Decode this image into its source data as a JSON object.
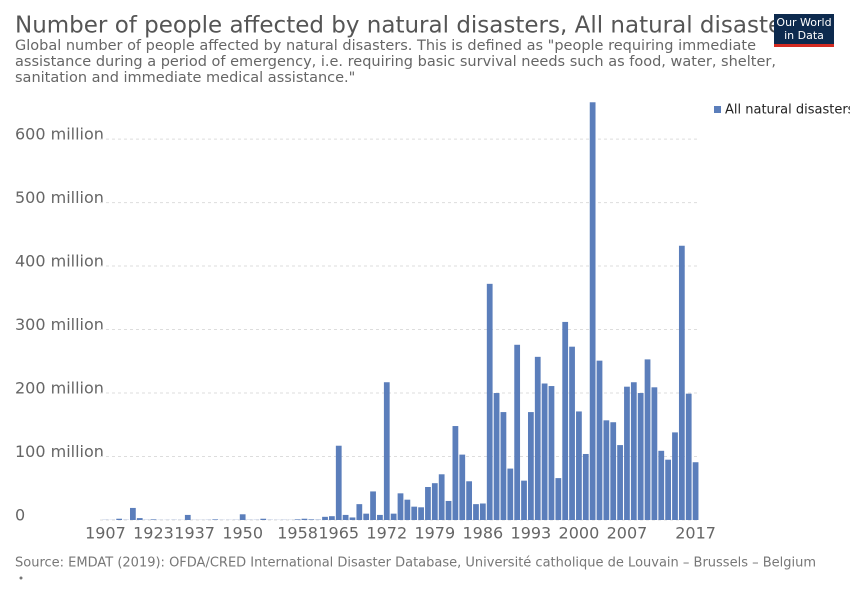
{
  "chart_data": {
    "type": "bar",
    "title": "Number of people affected by natural disasters, All natural disasters",
    "subtitle": "Global number of people affected by natural disasters. This is defined as \"people requiring immediate assistance during a period of emergency, i.e. requiring basic survival needs such as food, water, shelter, sanitation and immediate medical assistance.\"",
    "logo": "Our World in Data",
    "source": "Source: EMDAT (2019): OFDA/CRED International Disaster Database, Université catholique de Louvain – Brussels – Belgium",
    "categories": [
      "1907",
      null,
      null,
      null,
      null,
      null,
      null,
      "1923",
      null,
      null,
      null,
      null,
      null,
      "1937",
      null,
      null,
      null,
      null,
      null,
      null,
      "1950",
      null,
      null,
      null,
      null,
      null,
      null,
      null,
      "1958",
      null,
      null,
      null,
      null,
      null,
      "1965",
      null,
      null,
      null,
      null,
      null,
      null,
      "1972",
      null,
      null,
      null,
      null,
      null,
      null,
      "1979",
      null,
      null,
      null,
      null,
      null,
      null,
      "1986",
      null,
      null,
      null,
      null,
      null,
      null,
      "1993",
      null,
      null,
      null,
      null,
      null,
      null,
      "2000",
      null,
      null,
      null,
      null,
      null,
      null,
      "2007",
      null,
      null,
      null,
      null,
      null,
      null,
      null,
      null,
      null,
      "2017"
    ],
    "series": [
      {
        "name": "All natural disasters",
        "color": "#5b7ebb",
        "values": [
          0.3,
          0.2,
          2,
          0.3,
          19,
          3,
          0.3,
          1,
          0.2,
          0.2,
          0.3,
          0.2,
          8,
          0.2,
          0.2,
          0.3,
          1,
          0.2,
          0.2,
          0.3,
          9,
          0.3,
          0.3,
          2,
          0.3,
          0.2,
          0.3,
          0.2,
          1,
          2,
          1,
          0.5,
          5,
          6,
          117,
          8,
          4,
          25,
          10,
          45,
          8,
          217,
          10,
          42,
          32,
          21,
          20,
          52,
          58,
          72,
          30,
          148,
          103,
          61,
          25,
          26,
          372,
          200,
          170,
          81,
          276,
          62,
          170,
          257,
          215,
          211,
          66,
          312,
          273,
          171,
          104,
          658,
          251,
          157,
          154,
          118,
          210,
          217,
          200,
          253,
          209,
          109,
          95,
          138,
          432,
          199,
          91
        ]
      }
    ],
    "ylim": [
      0,
      660
    ],
    "yticks": [
      0,
      {
        "value": 100,
        "label": "100 million"
      },
      {
        "value": 200,
        "label": "200 million"
      },
      {
        "value": 300,
        "label": "300 million"
      },
      {
        "value": 400,
        "label": "400 million"
      },
      {
        "value": 500,
        "label": "500 million"
      },
      {
        "value": 600,
        "label": "600 million"
      }
    ],
    "grid": true,
    "legend": "top-right"
  }
}
